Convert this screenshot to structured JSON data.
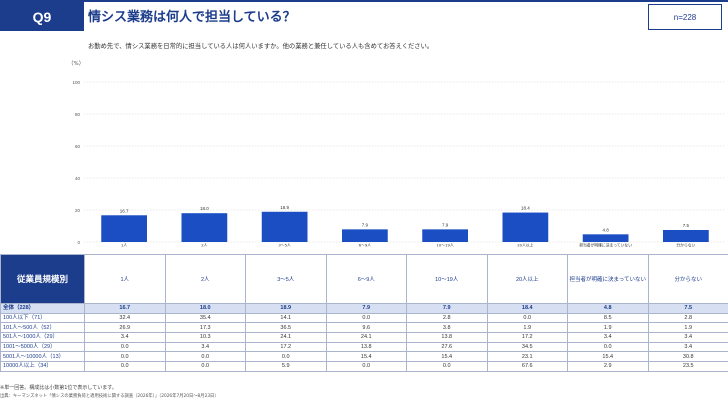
{
  "header": {
    "badge": "Q9",
    "title": "情シス業務は何人で担当している？",
    "n_label": "n=228",
    "question": "お勤め先で、情シス業務を日常的に担当している人は何人いますか。他の業務と兼任している人も含めてお答えください。"
  },
  "colors": {
    "accent": "#1c3c8c",
    "bar": "#1a4ec2",
    "total_row": "#d6e0f2"
  },
  "chart_data": {
    "type": "bar",
    "unit_label": "（%）",
    "ylim": [
      0,
      100
    ],
    "yticks": [
      0,
      20,
      40,
      60,
      80,
      100
    ],
    "grid": true,
    "categories": [
      "1人",
      "2人",
      "3〜5人",
      "6〜9人",
      "10〜19人",
      "20人以上",
      "担当者が明確に決まっていない",
      "分からない"
    ],
    "values": [
      16.7,
      18.0,
      18.9,
      7.9,
      7.9,
      18.4,
      4.8,
      7.5
    ]
  },
  "table": {
    "corner_header": "従業員規模別",
    "columns": [
      "1人",
      "2人",
      "3〜5人",
      "6〜9人",
      "10〜19人",
      "20人以上",
      "担当者が明確に決まっていない",
      "分からない"
    ],
    "rows": [
      {
        "label": "全体（228）",
        "values": [
          "16.7",
          "18.0",
          "18.9",
          "7.9",
          "7.9",
          "18.4",
          "4.8",
          "7.5"
        ]
      },
      {
        "label": "100人以下（71）",
        "values": [
          "32.4",
          "35.4",
          "14.1",
          "0.0",
          "2.8",
          "0.0",
          "8.5",
          "2.8"
        ]
      },
      {
        "label": "101人〜500人（52）",
        "values": [
          "26.9",
          "17.3",
          "36.5",
          "9.6",
          "3.8",
          "1.9",
          "1.9",
          "1.9"
        ]
      },
      {
        "label": "501人〜1000人（29）",
        "values": [
          "3.4",
          "10.3",
          "24.1",
          "24.1",
          "13.8",
          "17.2",
          "3.4",
          "3.4"
        ]
      },
      {
        "label": "1001〜5000人（29）",
        "values": [
          "0.0",
          "3.4",
          "17.2",
          "13.8",
          "27.6",
          "34.5",
          "0.0",
          "3.4"
        ]
      },
      {
        "label": "5001人〜10000人（13）",
        "values": [
          "0.0",
          "0.0",
          "0.0",
          "15.4",
          "15.4",
          "23.1",
          "15.4",
          "30.8"
        ]
      },
      {
        "label": "10000人以上（34）",
        "values": [
          "0.0",
          "0.0",
          "5.9",
          "0.0",
          "0.0",
          "67.6",
          "2.9",
          "23.5"
        ]
      }
    ]
  },
  "notes": {
    "line1": "※単一回答。構成比は小数第1位で表示しています。",
    "line2": "出典：キーマンズネット「情シスの業務負荷と適用技術に関する調査（2026年）」（2026年7月20日〜8月23日）"
  }
}
